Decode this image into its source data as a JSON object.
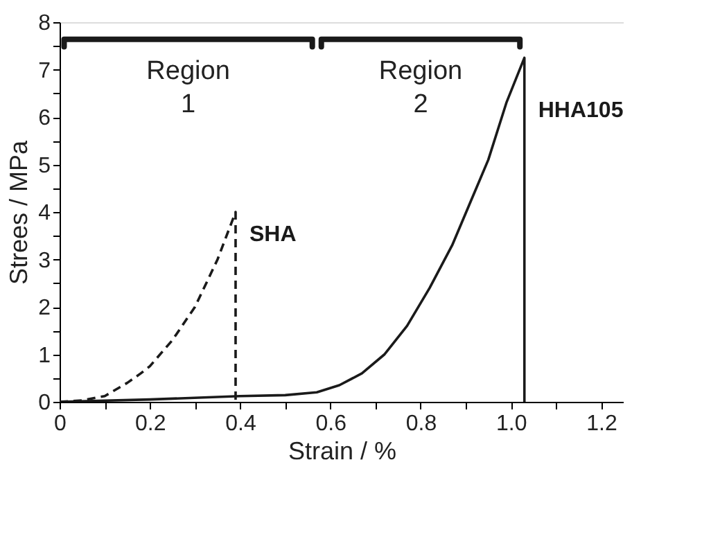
{
  "chart_data": {
    "type": "line",
    "xlabel": "Strain / %",
    "ylabel": "Strees / MPa",
    "xlim": [
      0,
      1.25
    ],
    "ylim": [
      0,
      8
    ],
    "xticks": [
      0,
      {
        "value": 0.1,
        "label": null
      },
      0.2,
      {
        "value": 0.3,
        "label": null
      },
      0.4,
      {
        "value": 0.5,
        "label": null
      },
      0.6,
      {
        "value": 0.7,
        "label": null
      },
      0.8,
      {
        "value": 0.9,
        "label": null
      },
      {
        "value": 1,
        "label": "1.0"
      },
      {
        "value": 1.1,
        "label": null
      },
      1.2
    ],
    "yticks": [
      0,
      {
        "value": 0.5,
        "label": null
      },
      1,
      {
        "value": 1.5,
        "label": null
      },
      2,
      {
        "value": 2.5,
        "label": null
      },
      3,
      {
        "value": 3.5,
        "label": null
      },
      4,
      {
        "value": 4.5,
        "label": null
      },
      5,
      {
        "value": 5.5,
        "label": null
      },
      6,
      {
        "value": 6.5,
        "label": null
      },
      7,
      {
        "value": 7.5,
        "label": null
      },
      8
    ],
    "grid": false,
    "marker": "none",
    "series": [
      {
        "name": "SHA",
        "color": "#1a1a1a",
        "line_style": "dashed",
        "x": [
          0,
          0.05,
          0.1,
          0.15,
          0.18,
          0.2,
          0.25,
          0.3,
          0.35,
          0.39,
          0.39
        ],
        "values": [
          0,
          0.03,
          0.12,
          0.4,
          0.6,
          0.75,
          1.3,
          2.0,
          3.0,
          4.0,
          0
        ]
      },
      {
        "name": "HHA105",
        "color": "#1a1a1a",
        "line_style": "solid",
        "x": [
          0,
          0.2,
          0.4,
          0.5,
          0.57,
          0.62,
          0.67,
          0.72,
          0.77,
          0.82,
          0.87,
          0.91,
          0.95,
          0.99,
          1.03,
          1.03
        ],
        "values": [
          0,
          0.05,
          0.12,
          0.14,
          0.2,
          0.35,
          0.6,
          1.0,
          1.6,
          2.4,
          3.3,
          4.2,
          5.1,
          6.3,
          7.25,
          0
        ]
      }
    ],
    "annotations": [
      "Region 1",
      "Region 2"
    ]
  }
}
